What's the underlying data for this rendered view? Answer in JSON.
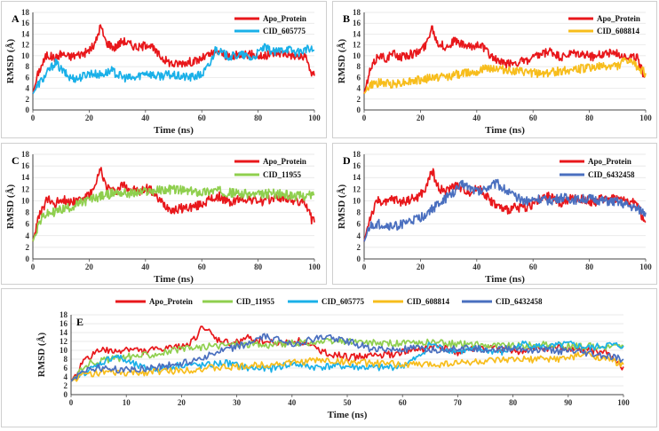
{
  "chart_data": [
    {
      "type": "line",
      "panel_label": "A",
      "xlabel": "Time (ns)",
      "ylabel": "RMSD (Å)",
      "xlim": [
        0,
        100
      ],
      "ylim": [
        0,
        18
      ],
      "xticks": [
        "0",
        "20",
        "40",
        "60",
        "80",
        "100"
      ],
      "yticks": [
        "0",
        "2",
        "4",
        "6",
        "8",
        "10",
        "12",
        "14",
        "16",
        "18"
      ],
      "legend_position": "top-right",
      "series": [
        {
          "name": "Apo_Protein",
          "color": "#e8171b",
          "x": [
            0,
            2,
            5,
            8,
            10,
            13,
            16,
            19,
            22,
            24,
            26,
            29,
            32,
            35,
            38,
            41,
            44,
            47,
            50,
            54,
            58,
            62,
            66,
            70,
            74,
            78,
            82,
            86,
            90,
            94,
            97,
            99,
            100
          ],
          "y": [
            3,
            7,
            10.2,
            9.5,
            10.4,
            9.8,
            10.2,
            10.6,
            12,
            15.5,
            12.5,
            11.5,
            12.8,
            12,
            11.5,
            12.3,
            10.5,
            9.2,
            8.4,
            8.8,
            9,
            10,
            10.8,
            9.6,
            10.4,
            10.2,
            9.8,
            10.6,
            10.4,
            9.8,
            9.6,
            6.8,
            6.3
          ]
        },
        {
          "name": "CID_605775",
          "color": "#1ab0e8",
          "x": [
            0,
            2,
            4,
            6,
            8,
            10,
            13,
            16,
            20,
            24,
            28,
            32,
            36,
            40,
            44,
            48,
            52,
            56,
            60,
            63,
            65,
            67,
            70,
            74,
            78,
            82,
            86,
            90,
            94,
            97,
            100
          ],
          "y": [
            3,
            4.8,
            6,
            7.5,
            8.8,
            7.5,
            6,
            5.8,
            6.8,
            6.5,
            7.2,
            6,
            5.8,
            7,
            6.2,
            6.5,
            6.2,
            6,
            6.5,
            8.5,
            11.5,
            10.5,
            9.8,
            10.2,
            9.5,
            11.5,
            10.6,
            11.4,
            10.5,
            11.2,
            11
          ]
        }
      ]
    },
    {
      "type": "line",
      "panel_label": "B",
      "xlabel": "Time (ns)",
      "ylabel": "RMSD (Å)",
      "xlim": [
        0,
        100
      ],
      "ylim": [
        0,
        18
      ],
      "xticks": [
        "0",
        "20",
        "40",
        "60",
        "80",
        "100"
      ],
      "yticks": [
        "0",
        "2",
        "4",
        "6",
        "8",
        "10",
        "12",
        "14",
        "16",
        "18"
      ],
      "legend_position": "top-right",
      "series": [
        {
          "name": "Apo_Protein",
          "color": "#e8171b",
          "x": [
            0,
            2,
            5,
            8,
            10,
            13,
            16,
            19,
            22,
            24,
            26,
            29,
            32,
            35,
            38,
            41,
            44,
            47,
            50,
            54,
            58,
            62,
            66,
            70,
            74,
            78,
            82,
            86,
            90,
            94,
            97,
            99,
            100
          ],
          "y": [
            3,
            7,
            10.2,
            9.5,
            10.4,
            9.8,
            10.2,
            10.6,
            12,
            15.5,
            12.5,
            11.5,
            12.8,
            12,
            11.5,
            12.3,
            10.5,
            9.2,
            8.4,
            8.8,
            9,
            10,
            10.8,
            9.6,
            10.4,
            10.2,
            9.8,
            10.6,
            10.4,
            9.8,
            9.6,
            6.8,
            6.3
          ]
        },
        {
          "name": "CID_608814",
          "color": "#f7bd1c",
          "x": [
            0,
            2,
            5,
            10,
            15,
            20,
            25,
            30,
            35,
            40,
            45,
            50,
            55,
            60,
            65,
            70,
            75,
            80,
            85,
            90,
            93,
            96,
            100
          ],
          "y": [
            3,
            4.5,
            5,
            4.8,
            5.2,
            5.5,
            6,
            6.2,
            6.8,
            7.2,
            7.8,
            7.4,
            7,
            6.8,
            6.8,
            7.2,
            7.5,
            7.8,
            8,
            8.2,
            9.2,
            8.4,
            6.8
          ]
        }
      ]
    },
    {
      "type": "line",
      "panel_label": "C",
      "xlabel": "Time (ns)",
      "ylabel": "RMSD (Å)",
      "xlim": [
        0,
        100
      ],
      "ylim": [
        0,
        18
      ],
      "xticks": [
        "0",
        "20",
        "40",
        "60",
        "80",
        "100"
      ],
      "yticks": [
        "0",
        "2",
        "4",
        "6",
        "8",
        "10",
        "12",
        "14",
        "16",
        "18"
      ],
      "legend_position": "top-right",
      "series": [
        {
          "name": "Apo_Protein",
          "color": "#e8171b",
          "x": [
            0,
            2,
            5,
            8,
            10,
            13,
            16,
            19,
            22,
            24,
            26,
            29,
            32,
            35,
            38,
            41,
            44,
            47,
            50,
            54,
            58,
            62,
            66,
            70,
            74,
            78,
            82,
            86,
            90,
            94,
            97,
            99,
            100
          ],
          "y": [
            3,
            7,
            10.2,
            9.5,
            10.4,
            9.8,
            10.2,
            10.6,
            12,
            15.5,
            12.5,
            11.5,
            12.8,
            12,
            11.5,
            12.3,
            10.5,
            9.2,
            8.4,
            8.8,
            9,
            10,
            10.8,
            9.6,
            10.4,
            10.2,
            9.8,
            10.6,
            10.4,
            9.8,
            9.6,
            6.8,
            6.3
          ]
        },
        {
          "name": "CID_11955",
          "color": "#8fcf4e",
          "x": [
            0,
            2,
            4,
            7,
            10,
            14,
            18,
            22,
            26,
            30,
            35,
            40,
            45,
            50,
            55,
            60,
            65,
            70,
            75,
            80,
            85,
            90,
            95,
            100
          ],
          "y": [
            3,
            6,
            7.5,
            8,
            8.5,
            9,
            9.8,
            10.5,
            11,
            11.5,
            11.2,
            11.6,
            11.8,
            12,
            11.6,
            11.5,
            11.8,
            11.4,
            11.2,
            11,
            11.3,
            11,
            10.8,
            11
          ]
        }
      ]
    },
    {
      "type": "line",
      "panel_label": "D",
      "xlabel": "Time (ns)",
      "ylabel": "RMSD (Å)",
      "xlim": [
        0,
        100
      ],
      "ylim": [
        0,
        18
      ],
      "xticks": [
        "0",
        "20",
        "40",
        "60",
        "80",
        "100"
      ],
      "yticks": [
        "0",
        "2",
        "4",
        "6",
        "8",
        "10",
        "12",
        "14",
        "16",
        "18"
      ],
      "legend_position": "top-right",
      "series": [
        {
          "name": "Apo_Protein",
          "color": "#e8171b",
          "x": [
            0,
            2,
            5,
            8,
            10,
            13,
            16,
            19,
            22,
            24,
            26,
            29,
            32,
            35,
            38,
            41,
            44,
            47,
            50,
            54,
            58,
            62,
            66,
            70,
            74,
            78,
            82,
            86,
            90,
            94,
            97,
            99,
            100
          ],
          "y": [
            3,
            7,
            10.2,
            9.5,
            10.4,
            9.8,
            10.2,
            10.6,
            12,
            15.5,
            12.5,
            11.5,
            12.8,
            12,
            11.5,
            12.3,
            10.5,
            9.2,
            8.4,
            8.8,
            9,
            10,
            10.8,
            9.6,
            10.4,
            10.2,
            9.8,
            10.6,
            10.4,
            9.8,
            9.6,
            6.8,
            6.3
          ]
        },
        {
          "name": "CID_6432458",
          "color": "#4a6fbf",
          "x": [
            0,
            2,
            5,
            10,
            15,
            20,
            24,
            28,
            32,
            35,
            38,
            41,
            44,
            47,
            50,
            54,
            58,
            62,
            66,
            70,
            75,
            80,
            85,
            90,
            95,
            100
          ],
          "y": [
            3,
            5.5,
            6,
            5.5,
            6.2,
            7,
            8.5,
            10,
            11.5,
            13,
            12.2,
            11.5,
            12.5,
            13,
            12,
            10.5,
            10,
            10.4,
            10,
            10.6,
            10.2,
            10.4,
            10,
            9.8,
            9,
            8
          ]
        }
      ]
    },
    {
      "type": "line",
      "panel_label": "E",
      "xlabel": "Time (ns)",
      "ylabel": "RMSD (Å)",
      "xlim": [
        0,
        100
      ],
      "ylim": [
        0,
        18
      ],
      "xticks": [
        "0",
        "10",
        "20",
        "30",
        "40",
        "50",
        "60",
        "70",
        "80",
        "90",
        "100"
      ],
      "yticks": [
        "0",
        "2",
        "4",
        "6",
        "8",
        "10",
        "12",
        "14",
        "16",
        "18"
      ],
      "legend_position": "top",
      "series": [
        {
          "name": "Apo_Protein",
          "color": "#e8171b",
          "x": [
            0,
            2,
            5,
            8,
            10,
            13,
            16,
            19,
            22,
            24,
            26,
            29,
            32,
            35,
            38,
            41,
            44,
            47,
            50,
            54,
            58,
            62,
            66,
            70,
            74,
            78,
            82,
            86,
            90,
            94,
            97,
            99,
            100
          ],
          "y": [
            3,
            7,
            10.2,
            9.5,
            10.4,
            9.8,
            10.2,
            10.6,
            12,
            15.5,
            12.5,
            11.5,
            12.8,
            12,
            11.5,
            12.3,
            10.5,
            9.2,
            8.4,
            8.8,
            9,
            10,
            10.8,
            9.6,
            10.4,
            10.2,
            9.8,
            10.6,
            10.4,
            9.8,
            9.6,
            6.8,
            6.3
          ]
        },
        {
          "name": "CID_11955",
          "color": "#8fcf4e",
          "x": [
            0,
            2,
            4,
            7,
            10,
            14,
            18,
            22,
            26,
            30,
            35,
            40,
            45,
            50,
            55,
            60,
            65,
            70,
            75,
            80,
            85,
            90,
            95,
            100
          ],
          "y": [
            3,
            6,
            7.5,
            8,
            8.5,
            9,
            9.8,
            10.5,
            11,
            11.5,
            11.2,
            11.6,
            11.8,
            12,
            11.6,
            11.5,
            11.8,
            11.4,
            11.2,
            11,
            11.3,
            11,
            10.8,
            11
          ]
        },
        {
          "name": "CID_605775",
          "color": "#1ab0e8",
          "x": [
            0,
            2,
            4,
            6,
            8,
            10,
            13,
            16,
            20,
            24,
            28,
            32,
            36,
            40,
            44,
            48,
            52,
            56,
            60,
            63,
            65,
            67,
            70,
            74,
            78,
            82,
            86,
            90,
            94,
            97,
            100
          ],
          "y": [
            3,
            4.8,
            6,
            7.5,
            8.8,
            7.5,
            6,
            5.8,
            6.8,
            6.5,
            7.2,
            6,
            5.8,
            7,
            6.2,
            6.5,
            6.2,
            6,
            6.5,
            8.5,
            11.5,
            10.5,
            9.8,
            10.2,
            9.5,
            11.5,
            10.6,
            11.4,
            10.5,
            11.2,
            11
          ]
        },
        {
          "name": "CID_608814",
          "color": "#f7bd1c",
          "x": [
            0,
            2,
            5,
            10,
            15,
            20,
            25,
            30,
            35,
            40,
            45,
            50,
            55,
            60,
            65,
            70,
            75,
            80,
            85,
            90,
            93,
            96,
            100
          ],
          "y": [
            3,
            4.5,
            5,
            4.8,
            5.2,
            5.5,
            6,
            6.2,
            6.8,
            7.2,
            7.8,
            7.4,
            7,
            6.8,
            6.8,
            7.2,
            7.5,
            7.8,
            8,
            8.2,
            9.2,
            8.4,
            6.8
          ]
        },
        {
          "name": "CID_6432458",
          "color": "#4a6fbf",
          "x": [
            0,
            2,
            5,
            10,
            15,
            20,
            24,
            28,
            32,
            35,
            38,
            41,
            44,
            47,
            50,
            54,
            58,
            62,
            66,
            70,
            75,
            80,
            85,
            90,
            95,
            100
          ],
          "y": [
            3,
            5.5,
            6,
            5.5,
            6.2,
            7,
            8.5,
            10,
            11.5,
            13,
            12.2,
            11.5,
            12.5,
            13,
            12,
            10.5,
            10,
            10.4,
            10,
            10.6,
            10.2,
            10.4,
            10,
            9.8,
            9,
            8
          ]
        }
      ]
    }
  ]
}
